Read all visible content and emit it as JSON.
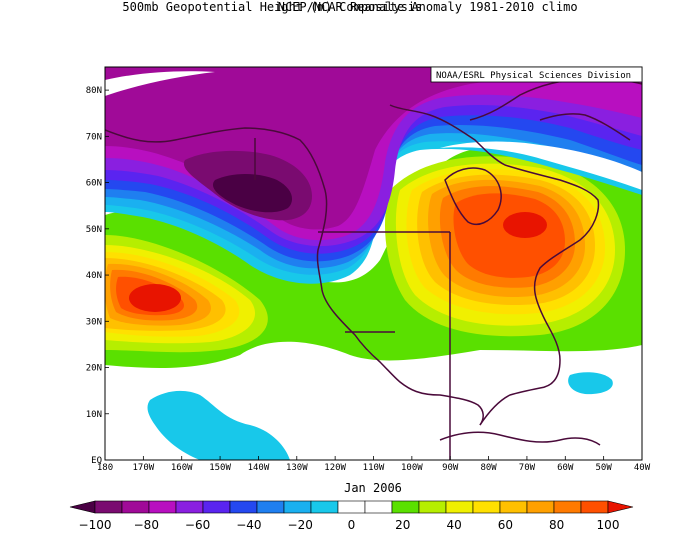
{
  "title_line1": "NCEP/NCAR Reanalysis",
  "title_line2": "500mb Geopotential Height (m) Composite Anomaly 1981-2010 climo",
  "credit": "NOAA/ESRL Physical Sciences Division",
  "period_label": "Jan 2006",
  "map": {
    "variable": "500mb geopotential height anomaly",
    "units": "m",
    "lon_range": [
      -180,
      -40
    ],
    "lat_range": [
      0,
      85
    ],
    "lon_ticks": [
      "180",
      "170W",
      "160W",
      "150W",
      "140W",
      "130W",
      "120W",
      "110W",
      "100W",
      "90W",
      "80W",
      "70W",
      "60W",
      "50W",
      "40W"
    ],
    "lat_ticks": [
      "EQ",
      "10N",
      "20N",
      "30N",
      "40N",
      "50N",
      "60N",
      "70N",
      "80N"
    ],
    "features": [
      {
        "name": "negative anomaly centre over Alaska / Gulf of Alaska",
        "lon": -145,
        "lat": 57,
        "value": -100
      },
      {
        "name": "positive anomaly centre over Quebec / Great Lakes",
        "lon": -72,
        "lat": 51,
        "value": 100
      },
      {
        "name": "positive anomaly centre over subtropical North Pacific",
        "lon": -165,
        "lat": 35,
        "value": 100
      }
    ]
  },
  "colorbar": {
    "levels": [
      -100,
      -90,
      -80,
      -70,
      -60,
      -50,
      -40,
      -30,
      -20,
      -10,
      0,
      10,
      20,
      30,
      40,
      50,
      60,
      70,
      80,
      90,
      100
    ],
    "colors": [
      "#4a0044",
      "#7a0b70",
      "#a00a98",
      "#b80fc0",
      "#8a1fe0",
      "#5a24f0",
      "#2448f0",
      "#1f7ff0",
      "#1ab0f0",
      "#18c8ea",
      "#ffffff",
      "#ffffff",
      "#5ae000",
      "#b6ee00",
      "#f0f000",
      "#ffe000",
      "#ffc000",
      "#ffa000",
      "#ff7a00",
      "#ff5000",
      "#e81400"
    ],
    "tick_labels": [
      "−100",
      "−80",
      "−60",
      "−40",
      "−20",
      "0",
      "20",
      "40",
      "60",
      "80",
      "100"
    ]
  }
}
